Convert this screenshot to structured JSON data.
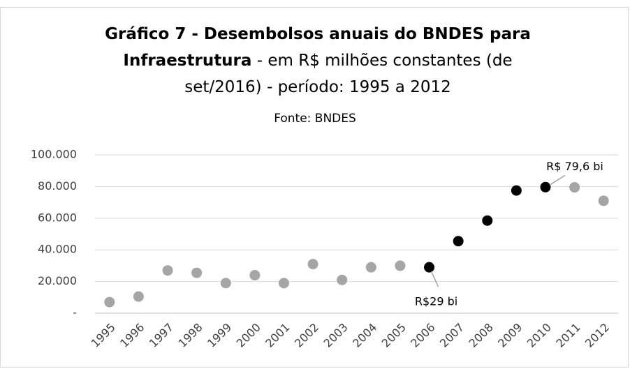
{
  "chart_data": {
    "type": "scatter",
    "title": "Gráfico 7 - Desembolsos anuais do BNDES para Infraestrutura",
    "title_suffix": " - em R$ milhões constantes (de set/2016) - período: 1995 a 2012",
    "subtitle": "Fonte: BNDES",
    "categories": [
      "1995",
      "1996",
      "1997",
      "1998",
      "1999",
      "2000",
      "2001",
      "2002",
      "2003",
      "2004",
      "2005",
      "2006",
      "2007",
      "2008",
      "2009",
      "2010",
      "2011",
      "2012"
    ],
    "values": [
      7000,
      10500,
      27000,
      25500,
      19000,
      24000,
      19000,
      31000,
      21000,
      29000,
      30000,
      29000,
      45500,
      58500,
      77500,
      79600,
      79500,
      71000
    ],
    "colors": [
      "#a5a5a5",
      "#a5a5a5",
      "#a5a5a5",
      "#a5a5a5",
      "#a5a5a5",
      "#a5a5a5",
      "#a5a5a5",
      "#a5a5a5",
      "#a5a5a5",
      "#a5a5a5",
      "#a5a5a5",
      "#000000",
      "#000000",
      "#000000",
      "#000000",
      "#000000",
      "#a5a5a5",
      "#a5a5a5"
    ],
    "ylim": [
      0,
      100000
    ],
    "yticks": [
      {
        "value": 0,
        "label": "-"
      },
      {
        "value": 20000,
        "label": "20.000"
      },
      {
        "value": 40000,
        "label": "40.000"
      },
      {
        "value": 60000,
        "label": "60.000"
      },
      {
        "value": 80000,
        "label": "80.000"
      },
      {
        "value": 100000,
        "label": "100.000"
      }
    ],
    "grid": true,
    "annotations": [
      {
        "text": "R$ 79,6 bi",
        "index": 15
      },
      {
        "text": "R$29 bi",
        "index": 11
      }
    ]
  }
}
